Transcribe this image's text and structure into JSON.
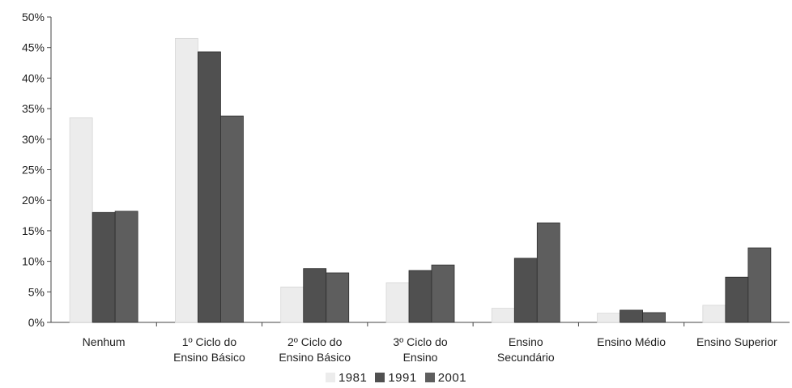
{
  "chart_data": {
    "type": "bar",
    "categories": [
      [
        "Nenhum"
      ],
      [
        "1º Ciclo do",
        "Ensino Básico"
      ],
      [
        "2º Ciclo do",
        "Ensino Básico"
      ],
      [
        "3º Ciclo do",
        "Ensino"
      ],
      [
        "Ensino",
        "Secundário"
      ],
      [
        "Ensino Médio"
      ],
      [
        "Ensino Superior"
      ]
    ],
    "series": [
      {
        "name": "1981",
        "color": "#ececec",
        "values": [
          33.5,
          46.5,
          5.8,
          6.5,
          2.3,
          1.5,
          2.8
        ]
      },
      {
        "name": "1991",
        "color": "#505050",
        "values": [
          18.0,
          44.3,
          8.8,
          8.5,
          10.5,
          2.0,
          7.4
        ]
      },
      {
        "name": "2001",
        "color": "#5e5e5e",
        "values": [
          18.2,
          33.8,
          8.1,
          9.4,
          16.3,
          1.6,
          12.2
        ]
      }
    ],
    "yticks": [
      "0%",
      "5%",
      "10%",
      "15%",
      "20%",
      "25%",
      "30%",
      "35%",
      "40%",
      "45%",
      "50%"
    ],
    "ylim": [
      0,
      50
    ],
    "ytick_step": 5,
    "grid": false,
    "legend_position": "bottom"
  }
}
